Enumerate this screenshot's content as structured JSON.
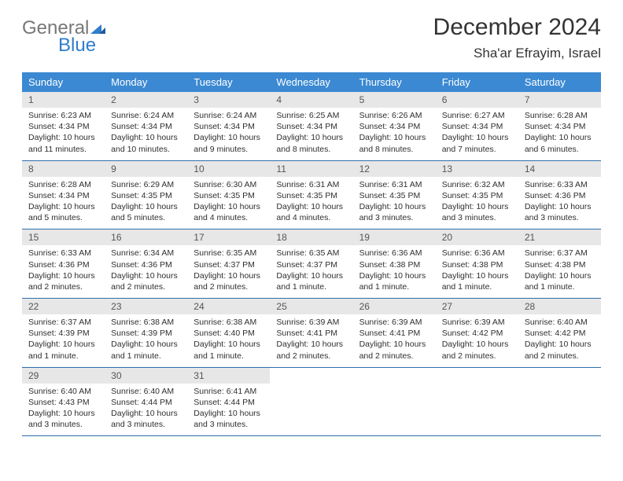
{
  "logo": {
    "word1": "General",
    "word2": "Blue"
  },
  "title": "December 2024",
  "location": "Sha'ar Efrayim, Israel",
  "colors": {
    "header_bg": "#3b89d2",
    "header_fg": "#ffffff",
    "daynum_bg": "#e7e7e7",
    "cell_border": "#2f6fa8",
    "logo_accent": "#2f7dcb"
  },
  "weekdays": [
    "Sunday",
    "Monday",
    "Tuesday",
    "Wednesday",
    "Thursday",
    "Friday",
    "Saturday"
  ],
  "days": [
    {
      "n": 1,
      "sr": "6:23 AM",
      "ss": "4:34 PM",
      "dl": "10 hours and 11 minutes."
    },
    {
      "n": 2,
      "sr": "6:24 AM",
      "ss": "4:34 PM",
      "dl": "10 hours and 10 minutes."
    },
    {
      "n": 3,
      "sr": "6:24 AM",
      "ss": "4:34 PM",
      "dl": "10 hours and 9 minutes."
    },
    {
      "n": 4,
      "sr": "6:25 AM",
      "ss": "4:34 PM",
      "dl": "10 hours and 8 minutes."
    },
    {
      "n": 5,
      "sr": "6:26 AM",
      "ss": "4:34 PM",
      "dl": "10 hours and 8 minutes."
    },
    {
      "n": 6,
      "sr": "6:27 AM",
      "ss": "4:34 PM",
      "dl": "10 hours and 7 minutes."
    },
    {
      "n": 7,
      "sr": "6:28 AM",
      "ss": "4:34 PM",
      "dl": "10 hours and 6 minutes."
    },
    {
      "n": 8,
      "sr": "6:28 AM",
      "ss": "4:34 PM",
      "dl": "10 hours and 5 minutes."
    },
    {
      "n": 9,
      "sr": "6:29 AM",
      "ss": "4:35 PM",
      "dl": "10 hours and 5 minutes."
    },
    {
      "n": 10,
      "sr": "6:30 AM",
      "ss": "4:35 PM",
      "dl": "10 hours and 4 minutes."
    },
    {
      "n": 11,
      "sr": "6:31 AM",
      "ss": "4:35 PM",
      "dl": "10 hours and 4 minutes."
    },
    {
      "n": 12,
      "sr": "6:31 AM",
      "ss": "4:35 PM",
      "dl": "10 hours and 3 minutes."
    },
    {
      "n": 13,
      "sr": "6:32 AM",
      "ss": "4:35 PM",
      "dl": "10 hours and 3 minutes."
    },
    {
      "n": 14,
      "sr": "6:33 AM",
      "ss": "4:36 PM",
      "dl": "10 hours and 3 minutes."
    },
    {
      "n": 15,
      "sr": "6:33 AM",
      "ss": "4:36 PM",
      "dl": "10 hours and 2 minutes."
    },
    {
      "n": 16,
      "sr": "6:34 AM",
      "ss": "4:36 PM",
      "dl": "10 hours and 2 minutes."
    },
    {
      "n": 17,
      "sr": "6:35 AM",
      "ss": "4:37 PM",
      "dl": "10 hours and 2 minutes."
    },
    {
      "n": 18,
      "sr": "6:35 AM",
      "ss": "4:37 PM",
      "dl": "10 hours and 1 minute."
    },
    {
      "n": 19,
      "sr": "6:36 AM",
      "ss": "4:38 PM",
      "dl": "10 hours and 1 minute."
    },
    {
      "n": 20,
      "sr": "6:36 AM",
      "ss": "4:38 PM",
      "dl": "10 hours and 1 minute."
    },
    {
      "n": 21,
      "sr": "6:37 AM",
      "ss": "4:38 PM",
      "dl": "10 hours and 1 minute."
    },
    {
      "n": 22,
      "sr": "6:37 AM",
      "ss": "4:39 PM",
      "dl": "10 hours and 1 minute."
    },
    {
      "n": 23,
      "sr": "6:38 AM",
      "ss": "4:39 PM",
      "dl": "10 hours and 1 minute."
    },
    {
      "n": 24,
      "sr": "6:38 AM",
      "ss": "4:40 PM",
      "dl": "10 hours and 1 minute."
    },
    {
      "n": 25,
      "sr": "6:39 AM",
      "ss": "4:41 PM",
      "dl": "10 hours and 2 minutes."
    },
    {
      "n": 26,
      "sr": "6:39 AM",
      "ss": "4:41 PM",
      "dl": "10 hours and 2 minutes."
    },
    {
      "n": 27,
      "sr": "6:39 AM",
      "ss": "4:42 PM",
      "dl": "10 hours and 2 minutes."
    },
    {
      "n": 28,
      "sr": "6:40 AM",
      "ss": "4:42 PM",
      "dl": "10 hours and 2 minutes."
    },
    {
      "n": 29,
      "sr": "6:40 AM",
      "ss": "4:43 PM",
      "dl": "10 hours and 3 minutes."
    },
    {
      "n": 30,
      "sr": "6:40 AM",
      "ss": "4:44 PM",
      "dl": "10 hours and 3 minutes."
    },
    {
      "n": 31,
      "sr": "6:41 AM",
      "ss": "4:44 PM",
      "dl": "10 hours and 3 minutes."
    }
  ],
  "labels": {
    "sunrise": "Sunrise:",
    "sunset": "Sunset:",
    "daylight": "Daylight:"
  },
  "layout": {
    "first_weekday_index": 0,
    "columns": 7
  }
}
